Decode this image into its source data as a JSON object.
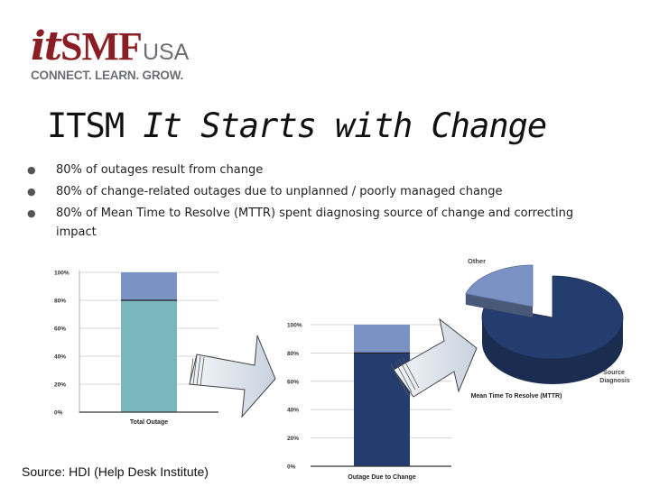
{
  "logo": {
    "it": "it",
    "smf": "SMF",
    "usa": "USA",
    "tagline": "CONNECT. LEARN. GROW."
  },
  "title": {
    "normal": "ITSM ",
    "italic": "It Starts with Change"
  },
  "bullets": [
    "80% of outages result from change",
    "80% of change-related outages due to unplanned / poorly managed change",
    "80% of Mean Time to Resolve (MTTR) spent diagnosing source of change and correcting impact"
  ],
  "source": "Source: HDI (Help Desk Institute)",
  "colors": {
    "brand": "#8b1d24",
    "teal": "#78b8bc",
    "lightblue": "#7b93c4",
    "navy": "#253d6e"
  },
  "chart_data": [
    {
      "type": "bar",
      "categories": [
        "Total Outage"
      ],
      "series": [
        {
          "values": [
            80
          ]
        },
        {
          "values": [
            20
          ]
        }
      ],
      "ylim": [
        0,
        100
      ],
      "yticks": [
        "100%",
        "80%",
        "60%",
        "40%",
        "20%",
        "0%"
      ]
    },
    {
      "type": "bar",
      "categories": [
        "Outage Due to Change"
      ],
      "series": [
        {
          "values": [
            80
          ]
        },
        {
          "values": [
            20
          ]
        }
      ],
      "ylim": [
        0,
        100
      ],
      "yticks": [
        "100%",
        "80%",
        "60%",
        "40%",
        "20%",
        "0%"
      ]
    },
    {
      "type": "pie",
      "title": "Mean Time To Resolve (MTTR)",
      "labels": [
        "Source Diagnosis",
        "Other"
      ],
      "values": [
        80,
        20
      ]
    }
  ]
}
